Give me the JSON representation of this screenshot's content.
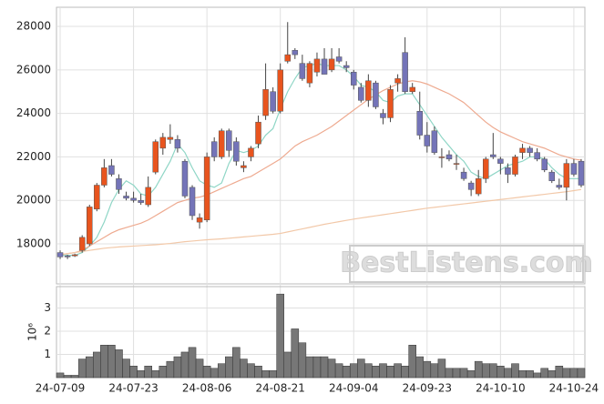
{
  "chart_data": [
    {
      "type": "candlestick",
      "categories": [
        "24-07-09",
        null,
        null,
        null,
        null,
        null,
        null,
        null,
        null,
        null,
        "24-07-23",
        null,
        null,
        null,
        null,
        null,
        null,
        null,
        null,
        null,
        "24-08-06",
        null,
        null,
        null,
        null,
        null,
        null,
        null,
        null,
        null,
        "24-08-21",
        null,
        null,
        null,
        null,
        null,
        null,
        null,
        null,
        null,
        "24-09-04",
        null,
        null,
        null,
        null,
        null,
        null,
        null,
        null,
        null,
        "24-09-23",
        null,
        null,
        null,
        null,
        null,
        null,
        null,
        null,
        null,
        "24-10-10",
        null,
        null,
        null,
        null,
        null,
        null,
        null,
        null,
        null,
        "24-10-24",
        null
      ],
      "open": [
        17600,
        17450,
        17450,
        17700,
        18000,
        19600,
        20700,
        21600,
        21000,
        20200,
        20100,
        20000,
        19800,
        21300,
        22400,
        22800,
        22800,
        21800,
        20600,
        19000,
        19100,
        22700,
        22000,
        23200,
        22700,
        21500,
        22000,
        22600,
        23900,
        25000,
        24100,
        26400,
        26900,
        26300,
        25400,
        25900,
        26500,
        26000,
        26600,
        26200,
        25900,
        25200,
        24600,
        25400,
        24000,
        23800,
        25400,
        26800,
        25000,
        24100,
        23000,
        23200,
        22000,
        22100,
        21700,
        21300,
        20800,
        20300,
        21000,
        22100,
        21900,
        21500,
        21200,
        22200,
        22400,
        22200,
        21900,
        21300,
        20700,
        20600,
        21700,
        21800
      ],
      "high": [
        17700,
        17500,
        17550,
        18400,
        19800,
        20800,
        21900,
        21900,
        21200,
        20400,
        20400,
        20300,
        21100,
        22800,
        23100,
        23500,
        23000,
        21900,
        20700,
        19400,
        22200,
        22900,
        23300,
        23300,
        22900,
        21800,
        22500,
        23900,
        26300,
        25200,
        26300,
        28200,
        27000,
        26700,
        26400,
        26800,
        27000,
        27000,
        27000,
        26400,
        26000,
        25400,
        25800,
        25500,
        24200,
        25300,
        25800,
        27500,
        25400,
        25000,
        23600,
        23400,
        22400,
        22300,
        22100,
        21500,
        20900,
        21400,
        22000,
        23100,
        22000,
        21700,
        22100,
        22600,
        22500,
        22400,
        22000,
        21400,
        21000,
        21900,
        21900,
        21900
      ],
      "low": [
        17300,
        17300,
        17400,
        17600,
        17900,
        19500,
        20600,
        21100,
        20300,
        20000,
        19900,
        19800,
        19700,
        21200,
        22100,
        22600,
        22200,
        20100,
        19100,
        18700,
        19000,
        21800,
        21900,
        22000,
        21600,
        21300,
        21800,
        22400,
        23700,
        24000,
        24000,
        26300,
        26500,
        25500,
        25200,
        25700,
        25800,
        25900,
        26300,
        25900,
        25100,
        24500,
        24300,
        24200,
        23500,
        23600,
        25000,
        24900,
        24900,
        22800,
        22200,
        22100,
        21500,
        21800,
        21400,
        20900,
        20200,
        20200,
        20800,
        21900,
        21200,
        20800,
        21100,
        21900,
        22000,
        21800,
        21300,
        20800,
        20500,
        20000,
        21100,
        20600
      ],
      "close": [
        17400,
        17400,
        17500,
        18300,
        19700,
        20700,
        21500,
        21200,
        20500,
        20100,
        20000,
        19900,
        20600,
        22700,
        22900,
        22900,
        22400,
        20200,
        19300,
        19200,
        22000,
        22000,
        23200,
        22300,
        21800,
        21600,
        22400,
        23600,
        25100,
        24100,
        26000,
        26700,
        26700,
        25600,
        26300,
        26500,
        25800,
        26500,
        26400,
        26100,
        25300,
        24600,
        25500,
        24300,
        23800,
        25100,
        25600,
        25000,
        25200,
        23000,
        22500,
        22200,
        22000,
        21900,
        21700,
        21000,
        20500,
        21000,
        21900,
        22000,
        21700,
        21200,
        22000,
        22400,
        22200,
        21900,
        21400,
        20900,
        20600,
        21700,
        21200,
        20700
      ],
      "up_color": "#e8541e",
      "down_color": "#7474b8",
      "series": [
        {
          "color": "#8fd6c6",
          "values": [
            17500,
            17480,
            17470,
            17600,
            17900,
            18300,
            19000,
            19900,
            20500,
            20900,
            20700,
            20300,
            20200,
            20600,
            21200,
            21800,
            22600,
            22200,
            21500,
            20900,
            20700,
            20600,
            20800,
            21700,
            22300,
            22200,
            22300,
            22500,
            23000,
            23300,
            24200,
            25000,
            25600,
            26100,
            26200,
            26300,
            26200,
            26200,
            26200,
            26000,
            25700,
            25300,
            25200,
            25000,
            24600,
            24500,
            24800,
            24900,
            24900,
            24400,
            23900,
            23400,
            22900,
            22500,
            22100,
            21800,
            21300,
            21100,
            21000,
            21200,
            21400,
            21600,
            21700,
            21800,
            22000,
            22000,
            21900,
            21500,
            21200,
            21000,
            21000,
            21000
          ]
        },
        {
          "color": "#eeaa90",
          "values": [
            17500,
            17550,
            17600,
            17700,
            17900,
            18100,
            18300,
            18500,
            18650,
            18750,
            18850,
            18950,
            19100,
            19300,
            19500,
            19700,
            19900,
            20000,
            20100,
            20150,
            20250,
            20400,
            20550,
            20700,
            20850,
            21000,
            21100,
            21300,
            21500,
            21700,
            21900,
            22200,
            22500,
            22700,
            22850,
            23000,
            23200,
            23400,
            23650,
            23900,
            24150,
            24400,
            24650,
            24850,
            25050,
            25200,
            25350,
            25450,
            25500,
            25450,
            25350,
            25200,
            25050,
            24900,
            24700,
            24500,
            24200,
            23900,
            23600,
            23350,
            23150,
            23000,
            22850,
            22700,
            22600,
            22500,
            22400,
            22250,
            22100,
            22000,
            21900,
            21850
          ]
        },
        {
          "color": "#f2c8a8",
          "values": [
            17500,
            17550,
            17600,
            17650,
            17700,
            17750,
            17800,
            17830,
            17860,
            17880,
            17900,
            17920,
            17940,
            17960,
            17990,
            18020,
            18060,
            18100,
            18130,
            18160,
            18190,
            18210,
            18230,
            18260,
            18290,
            18320,
            18350,
            18380,
            18410,
            18440,
            18480,
            18550,
            18620,
            18690,
            18760,
            18830,
            18900,
            18960,
            19020,
            19080,
            19140,
            19190,
            19240,
            19290,
            19340,
            19390,
            19440,
            19490,
            19540,
            19590,
            19640,
            19680,
            19720,
            19760,
            19800,
            19840,
            19880,
            19920,
            19960,
            20000,
            20040,
            20080,
            20120,
            20160,
            20200,
            20240,
            20280,
            20320,
            20360,
            20400,
            20450,
            20500
          ]
        }
      ],
      "ylim": [
        16160,
        28880
      ],
      "yticks": [
        18000,
        20000,
        22000,
        24000,
        26000,
        28000
      ],
      "grid": true,
      "watermark": "BestListens.com"
    },
    {
      "type": "bar",
      "y_label": "10⁶",
      "color": "#777777",
      "values": [
        0.2,
        0.1,
        0.1,
        0.8,
        0.9,
        1.1,
        1.4,
        1.4,
        1.2,
        0.8,
        0.5,
        0.3,
        0.5,
        0.3,
        0.5,
        0.7,
        0.9,
        1.1,
        1.3,
        0.8,
        0.5,
        0.4,
        0.6,
        0.9,
        1.3,
        0.8,
        0.6,
        0.5,
        0.3,
        0.3,
        3.6,
        1.1,
        2.1,
        1.5,
        0.9,
        0.9,
        0.9,
        0.8,
        0.6,
        0.5,
        0.6,
        0.8,
        0.6,
        0.5,
        0.6,
        0.5,
        0.6,
        0.5,
        1.4,
        0.9,
        0.7,
        0.6,
        0.8,
        0.4,
        0.4,
        0.4,
        0.3,
        0.7,
        0.6,
        0.6,
        0.5,
        0.4,
        0.6,
        0.3,
        0.3,
        0.2,
        0.4,
        0.3,
        0.5,
        0.4,
        0.4,
        0.4
      ],
      "ylim": [
        0,
        3.92
      ],
      "yticks": [
        1,
        2,
        3
      ],
      "grid": true
    }
  ]
}
